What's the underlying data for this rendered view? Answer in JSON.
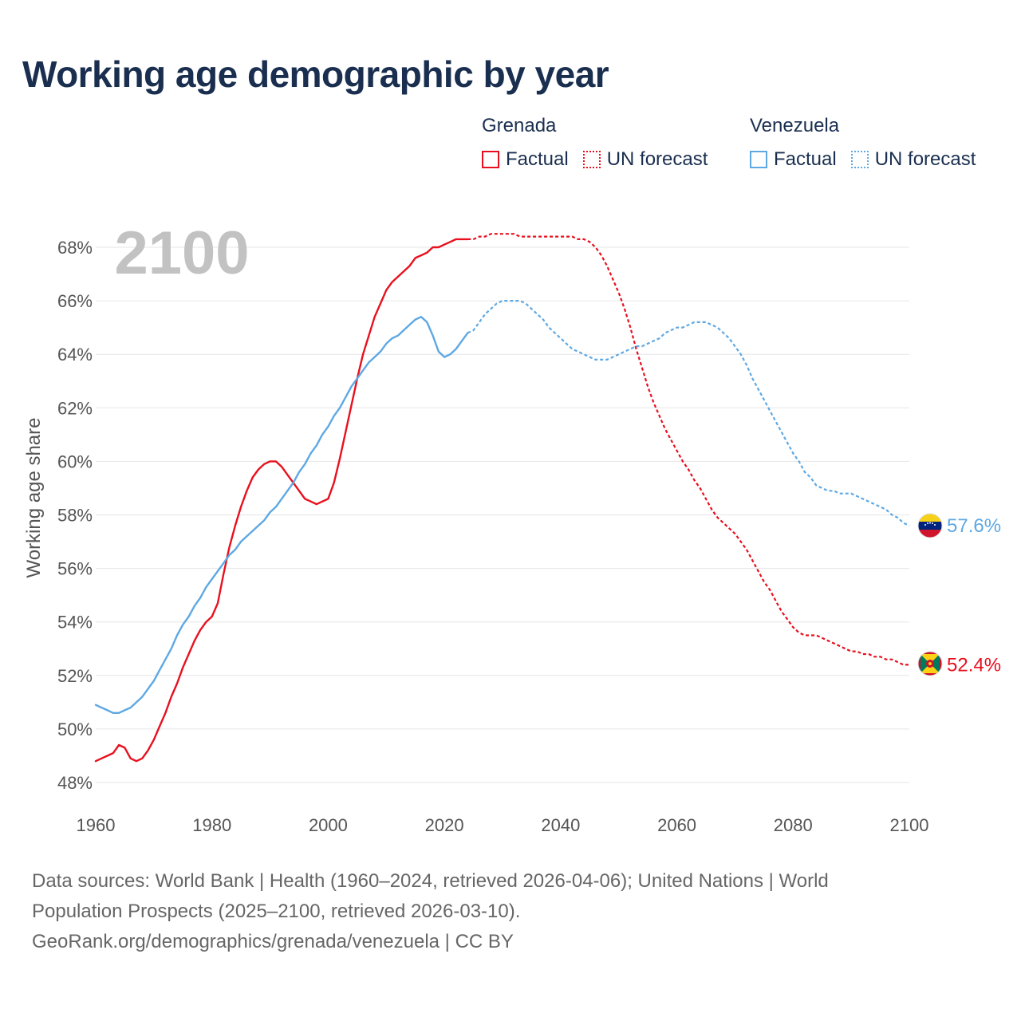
{
  "title": "Working age demographic by year",
  "legend": {
    "groups": [
      {
        "name": "Grenada",
        "color": "#e8101e",
        "items": [
          {
            "label": "Factual",
            "style": "solid"
          },
          {
            "label": "UN forecast",
            "style": "dotted"
          }
        ]
      },
      {
        "name": "Venezuela",
        "color": "#5ea8e3",
        "items": [
          {
            "label": "Factual",
            "style": "solid"
          },
          {
            "label": "UN forecast",
            "style": "dotted"
          }
        ]
      }
    ]
  },
  "year_watermark": "2100",
  "footer": {
    "line1": "Data sources: World Bank | Health (1960–2024, retrieved 2026-04-06); United Nations | World",
    "line2": "Population Prospects (2025–2100, retrieved 2026-03-10).",
    "line3": "GeoRank.org/demographics/grenada/venezuela | CC BY"
  },
  "chart_data": {
    "type": "line",
    "ylabel": "Working age share",
    "xlabel": "",
    "xlim": [
      1960,
      2100
    ],
    "ylim": [
      48,
      68
    ],
    "x_ticks": [
      "1960",
      "1980",
      "2000",
      "2020",
      "2040",
      "2060",
      "2080",
      "2100"
    ],
    "y_ticks": [
      "48%",
      "50%",
      "52%",
      "54%",
      "56%",
      "58%",
      "60%",
      "62%",
      "64%",
      "66%",
      "68%"
    ],
    "factual_end_year": 2024,
    "series": [
      {
        "name": "Grenada",
        "color": "#e8101e",
        "end_label": "52.4%",
        "points": [
          [
            1960,
            48.8
          ],
          [
            1961,
            48.9
          ],
          [
            1962,
            49.0
          ],
          [
            1963,
            49.1
          ],
          [
            1964,
            49.4
          ],
          [
            1965,
            49.3
          ],
          [
            1966,
            48.9
          ],
          [
            1967,
            48.8
          ],
          [
            1968,
            48.9
          ],
          [
            1969,
            49.2
          ],
          [
            1970,
            49.6
          ],
          [
            1971,
            50.1
          ],
          [
            1972,
            50.6
          ],
          [
            1973,
            51.2
          ],
          [
            1974,
            51.7
          ],
          [
            1975,
            52.3
          ],
          [
            1976,
            52.8
          ],
          [
            1977,
            53.3
          ],
          [
            1978,
            53.7
          ],
          [
            1979,
            54.0
          ],
          [
            1980,
            54.2
          ],
          [
            1981,
            54.7
          ],
          [
            1982,
            55.8
          ],
          [
            1983,
            56.8
          ],
          [
            1984,
            57.6
          ],
          [
            1985,
            58.3
          ],
          [
            1986,
            58.9
          ],
          [
            1987,
            59.4
          ],
          [
            1988,
            59.7
          ],
          [
            1989,
            59.9
          ],
          [
            1990,
            60.0
          ],
          [
            1991,
            60.0
          ],
          [
            1992,
            59.8
          ],
          [
            1993,
            59.5
          ],
          [
            1994,
            59.2
          ],
          [
            1995,
            58.9
          ],
          [
            1996,
            58.6
          ],
          [
            1997,
            58.5
          ],
          [
            1998,
            58.4
          ],
          [
            1999,
            58.5
          ],
          [
            2000,
            58.6
          ],
          [
            2001,
            59.2
          ],
          [
            2002,
            60.1
          ],
          [
            2003,
            61.1
          ],
          [
            2004,
            62.1
          ],
          [
            2005,
            63.1
          ],
          [
            2006,
            64.0
          ],
          [
            2007,
            64.7
          ],
          [
            2008,
            65.4
          ],
          [
            2009,
            65.9
          ],
          [
            2010,
            66.4
          ],
          [
            2011,
            66.7
          ],
          [
            2012,
            66.9
          ],
          [
            2013,
            67.1
          ],
          [
            2014,
            67.3
          ],
          [
            2015,
            67.6
          ],
          [
            2016,
            67.7
          ],
          [
            2017,
            67.8
          ],
          [
            2018,
            68.0
          ],
          [
            2019,
            68.0
          ],
          [
            2020,
            68.1
          ],
          [
            2021,
            68.2
          ],
          [
            2022,
            68.3
          ],
          [
            2023,
            68.3
          ],
          [
            2024,
            68.3
          ],
          [
            2025,
            68.3
          ],
          [
            2026,
            68.4
          ],
          [
            2027,
            68.4
          ],
          [
            2028,
            68.5
          ],
          [
            2029,
            68.5
          ],
          [
            2030,
            68.5
          ],
          [
            2031,
            68.5
          ],
          [
            2032,
            68.5
          ],
          [
            2033,
            68.4
          ],
          [
            2034,
            68.4
          ],
          [
            2035,
            68.4
          ],
          [
            2036,
            68.4
          ],
          [
            2037,
            68.4
          ],
          [
            2038,
            68.4
          ],
          [
            2039,
            68.4
          ],
          [
            2040,
            68.4
          ],
          [
            2041,
            68.4
          ],
          [
            2042,
            68.4
          ],
          [
            2043,
            68.3
          ],
          [
            2044,
            68.3
          ],
          [
            2045,
            68.2
          ],
          [
            2046,
            68.0
          ],
          [
            2047,
            67.7
          ],
          [
            2048,
            67.3
          ],
          [
            2049,
            66.8
          ],
          [
            2050,
            66.3
          ],
          [
            2051,
            65.7
          ],
          [
            2052,
            65.0
          ],
          [
            2053,
            64.2
          ],
          [
            2054,
            63.5
          ],
          [
            2055,
            62.8
          ],
          [
            2056,
            62.2
          ],
          [
            2057,
            61.7
          ],
          [
            2058,
            61.2
          ],
          [
            2059,
            60.8
          ],
          [
            2060,
            60.4
          ],
          [
            2061,
            60.0
          ],
          [
            2062,
            59.7
          ],
          [
            2063,
            59.3
          ],
          [
            2064,
            59.0
          ],
          [
            2065,
            58.6
          ],
          [
            2066,
            58.2
          ],
          [
            2067,
            57.9
          ],
          [
            2068,
            57.7
          ],
          [
            2069,
            57.5
          ],
          [
            2070,
            57.3
          ],
          [
            2071,
            57.0
          ],
          [
            2072,
            56.7
          ],
          [
            2073,
            56.3
          ],
          [
            2074,
            55.9
          ],
          [
            2075,
            55.5
          ],
          [
            2076,
            55.2
          ],
          [
            2077,
            54.8
          ],
          [
            2078,
            54.4
          ],
          [
            2079,
            54.1
          ],
          [
            2080,
            53.8
          ],
          [
            2081,
            53.6
          ],
          [
            2082,
            53.5
          ],
          [
            2083,
            53.5
          ],
          [
            2084,
            53.5
          ],
          [
            2085,
            53.4
          ],
          [
            2086,
            53.3
          ],
          [
            2087,
            53.2
          ],
          [
            2088,
            53.1
          ],
          [
            2089,
            53.0
          ],
          [
            2090,
            52.9
          ],
          [
            2091,
            52.9
          ],
          [
            2092,
            52.8
          ],
          [
            2093,
            52.8
          ],
          [
            2094,
            52.7
          ],
          [
            2095,
            52.7
          ],
          [
            2096,
            52.6
          ],
          [
            2097,
            52.6
          ],
          [
            2098,
            52.5
          ],
          [
            2099,
            52.4
          ],
          [
            2100,
            52.4
          ]
        ]
      },
      {
        "name": "Venezuela",
        "color": "#5ea8e3",
        "end_label": "57.6%",
        "points": [
          [
            1960,
            50.9
          ],
          [
            1961,
            50.8
          ],
          [
            1962,
            50.7
          ],
          [
            1963,
            50.6
          ],
          [
            1964,
            50.6
          ],
          [
            1965,
            50.7
          ],
          [
            1966,
            50.8
          ],
          [
            1967,
            51.0
          ],
          [
            1968,
            51.2
          ],
          [
            1969,
            51.5
          ],
          [
            1970,
            51.8
          ],
          [
            1971,
            52.2
          ],
          [
            1972,
            52.6
          ],
          [
            1973,
            53.0
          ],
          [
            1974,
            53.5
          ],
          [
            1975,
            53.9
          ],
          [
            1976,
            54.2
          ],
          [
            1977,
            54.6
          ],
          [
            1978,
            54.9
          ],
          [
            1979,
            55.3
          ],
          [
            1980,
            55.6
          ],
          [
            1981,
            55.9
          ],
          [
            1982,
            56.2
          ],
          [
            1983,
            56.5
          ],
          [
            1984,
            56.7
          ],
          [
            1985,
            57.0
          ],
          [
            1986,
            57.2
          ],
          [
            1987,
            57.4
          ],
          [
            1988,
            57.6
          ],
          [
            1989,
            57.8
          ],
          [
            1990,
            58.1
          ],
          [
            1991,
            58.3
          ],
          [
            1992,
            58.6
          ],
          [
            1993,
            58.9
          ],
          [
            1994,
            59.2
          ],
          [
            1995,
            59.6
          ],
          [
            1996,
            59.9
          ],
          [
            1997,
            60.3
          ],
          [
            1998,
            60.6
          ],
          [
            1999,
            61.0
          ],
          [
            2000,
            61.3
          ],
          [
            2001,
            61.7
          ],
          [
            2002,
            62.0
          ],
          [
            2003,
            62.4
          ],
          [
            2004,
            62.8
          ],
          [
            2005,
            63.1
          ],
          [
            2006,
            63.4
          ],
          [
            2007,
            63.7
          ],
          [
            2008,
            63.9
          ],
          [
            2009,
            64.1
          ],
          [
            2010,
            64.4
          ],
          [
            2011,
            64.6
          ],
          [
            2012,
            64.7
          ],
          [
            2013,
            64.9
          ],
          [
            2014,
            65.1
          ],
          [
            2015,
            65.3
          ],
          [
            2016,
            65.4
          ],
          [
            2017,
            65.2
          ],
          [
            2018,
            64.7
          ],
          [
            2019,
            64.1
          ],
          [
            2020,
            63.9
          ],
          [
            2021,
            64.0
          ],
          [
            2022,
            64.2
          ],
          [
            2023,
            64.5
          ],
          [
            2024,
            64.8
          ],
          [
            2025,
            64.9
          ],
          [
            2026,
            65.2
          ],
          [
            2027,
            65.5
          ],
          [
            2028,
            65.7
          ],
          [
            2029,
            65.9
          ],
          [
            2030,
            66.0
          ],
          [
            2031,
            66.0
          ],
          [
            2032,
            66.0
          ],
          [
            2033,
            66.0
          ],
          [
            2034,
            65.9
          ],
          [
            2035,
            65.7
          ],
          [
            2036,
            65.5
          ],
          [
            2037,
            65.3
          ],
          [
            2038,
            65.0
          ],
          [
            2039,
            64.8
          ],
          [
            2040,
            64.6
          ],
          [
            2041,
            64.4
          ],
          [
            2042,
            64.2
          ],
          [
            2043,
            64.1
          ],
          [
            2044,
            64.0
          ],
          [
            2045,
            63.9
          ],
          [
            2046,
            63.8
          ],
          [
            2047,
            63.8
          ],
          [
            2048,
            63.8
          ],
          [
            2049,
            63.9
          ],
          [
            2050,
            64.0
          ],
          [
            2051,
            64.1
          ],
          [
            2052,
            64.2
          ],
          [
            2053,
            64.3
          ],
          [
            2054,
            64.3
          ],
          [
            2055,
            64.4
          ],
          [
            2056,
            64.5
          ],
          [
            2057,
            64.6
          ],
          [
            2058,
            64.8
          ],
          [
            2059,
            64.9
          ],
          [
            2060,
            65.0
          ],
          [
            2061,
            65.0
          ],
          [
            2062,
            65.1
          ],
          [
            2063,
            65.2
          ],
          [
            2064,
            65.2
          ],
          [
            2065,
            65.2
          ],
          [
            2066,
            65.1
          ],
          [
            2067,
            65.0
          ],
          [
            2068,
            64.8
          ],
          [
            2069,
            64.6
          ],
          [
            2070,
            64.3
          ],
          [
            2071,
            64.0
          ],
          [
            2072,
            63.6
          ],
          [
            2073,
            63.1
          ],
          [
            2074,
            62.7
          ],
          [
            2075,
            62.3
          ],
          [
            2076,
            61.9
          ],
          [
            2077,
            61.5
          ],
          [
            2078,
            61.1
          ],
          [
            2079,
            60.7
          ],
          [
            2080,
            60.3
          ],
          [
            2081,
            60.0
          ],
          [
            2082,
            59.6
          ],
          [
            2083,
            59.4
          ],
          [
            2084,
            59.1
          ],
          [
            2085,
            59.0
          ],
          [
            2086,
            58.9
          ],
          [
            2087,
            58.9
          ],
          [
            2088,
            58.8
          ],
          [
            2089,
            58.8
          ],
          [
            2090,
            58.8
          ],
          [
            2091,
            58.7
          ],
          [
            2092,
            58.6
          ],
          [
            2093,
            58.5
          ],
          [
            2094,
            58.4
          ],
          [
            2095,
            58.3
          ],
          [
            2096,
            58.2
          ],
          [
            2097,
            58.0
          ],
          [
            2098,
            57.9
          ],
          [
            2099,
            57.7
          ],
          [
            2100,
            57.6
          ]
        ]
      }
    ]
  }
}
